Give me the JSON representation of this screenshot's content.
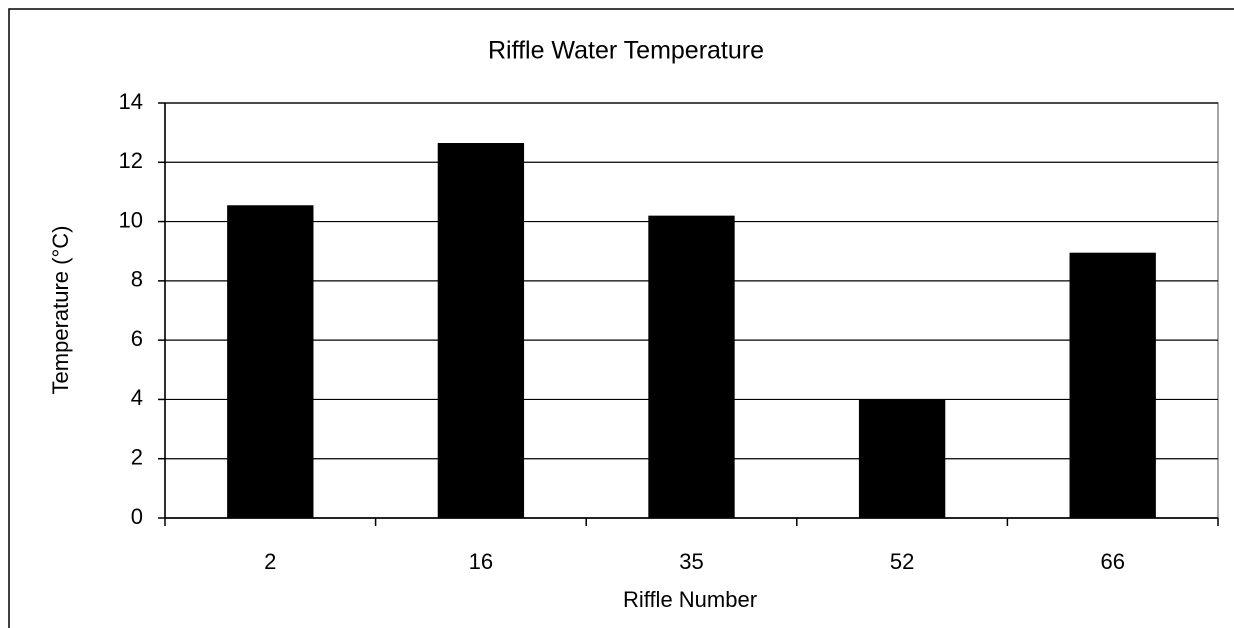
{
  "chart_data": {
    "type": "bar",
    "title": "Riffle Water Temperature",
    "x_label": "Riffle Number",
    "y_label": "Temperature (°C)",
    "categories": [
      "2",
      "16",
      "35",
      "52",
      "66"
    ],
    "values": [
      10.55,
      12.65,
      10.2,
      4.0,
      8.95
    ],
    "color": "#000000",
    "ylim": [
      0,
      14
    ],
    "yticks": [
      0,
      2,
      4,
      6,
      8,
      10,
      12,
      14
    ],
    "grid": true
  }
}
